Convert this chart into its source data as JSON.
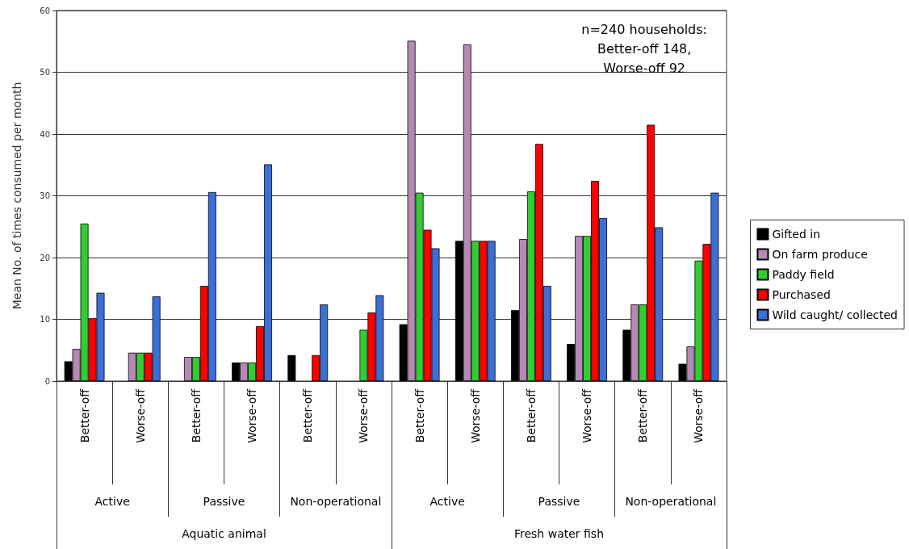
{
  "chart_data": {
    "type": "bar",
    "ylabel": "Mean No. of times consumed per month",
    "categories": [
      "Better-off",
      "Worse-off",
      "Better-off",
      "Worse-off",
      "Better-off",
      "Worse-off",
      "Better-off",
      "Worse-off",
      "Better-off",
      "Worse-off",
      "Better-off",
      "Worse-off"
    ],
    "series": [
      {
        "name": "Gifted in",
        "color": "#000000",
        "values": [
          3.2,
          0,
          0,
          3.0,
          4.2,
          0,
          9.2,
          22.7,
          11.5,
          6.0,
          8.3,
          2.8
        ]
      },
      {
        "name": "On farm produce",
        "color": "#b48ab4",
        "values": [
          5.2,
          4.6,
          3.9,
          3.0,
          0,
          0,
          55.1,
          54.5,
          23.0,
          23.5,
          12.4,
          5.6
        ]
      },
      {
        "name": "Paddy field",
        "color": "#33cc33",
        "values": [
          25.5,
          4.6,
          3.9,
          3.0,
          0,
          8.3,
          30.5,
          22.7,
          30.7,
          23.5,
          12.4,
          19.5
        ]
      },
      {
        "name": "Purchased",
        "color": "#ff0000",
        "values": [
          10.2,
          4.6,
          15.4,
          8.9,
          4.2,
          11.1,
          24.5,
          22.7,
          38.4,
          32.4,
          41.5,
          22.2
        ]
      },
      {
        "name": "Wild caught/ collected",
        "color": "#3b6fd6",
        "values": [
          14.3,
          13.7,
          30.6,
          35.1,
          12.4,
          13.9,
          21.5,
          22.7,
          15.4,
          26.4,
          24.9,
          30.5
        ]
      }
    ],
    "ylim": [
      0,
      60
    ],
    "yticks": [
      0,
      10,
      20,
      30,
      40,
      50,
      60
    ],
    "grid": "y",
    "legend": "right",
    "annotations": [
      "n=240 households:\nBetter-off 148,\nWorse-off 92",
      "Active",
      "Passive",
      "Non-operational",
      "Active",
      "Passive",
      "Non-operational",
      "Aquatic animal",
      "Fresh water fish"
    ]
  }
}
